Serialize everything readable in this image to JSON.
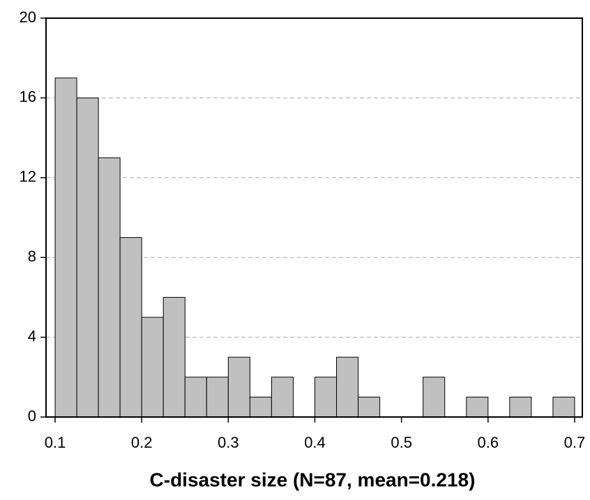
{
  "chart_data": {
    "type": "histogram",
    "x_label": "C-disaster size (N=87, mean=0.218)",
    "bins": [
      0.1,
      0.125,
      0.15,
      0.175,
      0.2,
      0.225,
      0.25,
      0.275,
      0.3,
      0.325,
      0.35,
      0.375,
      0.4,
      0.425,
      0.45,
      0.475,
      0.5,
      0.525,
      0.55,
      0.575,
      0.6,
      0.625,
      0.65,
      0.675,
      0.7
    ],
    "values": [
      17,
      16,
      13,
      9,
      5,
      6,
      2,
      2,
      3,
      1,
      2,
      0,
      2,
      3,
      1,
      0,
      0,
      2,
      0,
      1,
      0,
      1,
      0,
      1
    ],
    "color": "#c0c0c0",
    "xlim": [
      0.0895,
      0.7089
    ],
    "xticks": [
      0.1,
      0.2,
      0.3,
      0.4,
      0.5,
      0.6,
      0.7
    ],
    "ylim": [
      0,
      20
    ],
    "yticks": [
      0,
      4,
      8,
      12,
      16,
      20
    ],
    "grid": true
  }
}
